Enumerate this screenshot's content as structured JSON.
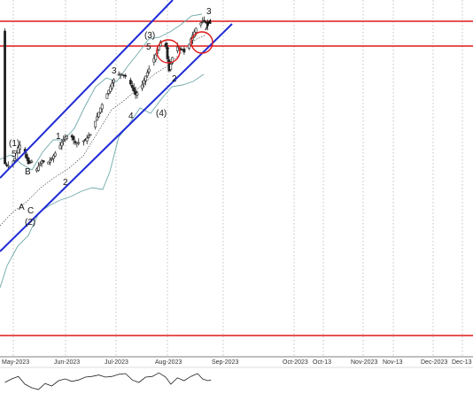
{
  "chart_data": {
    "type": "candlestick",
    "x_ticks": [
      "May-2023",
      "Jun-2023",
      "Jul-2023",
      "Aug-2023",
      "Sep-2023",
      "Oct-2023",
      "Oct-13",
      "Nov-2023",
      "Nov-13",
      "Dec-2023",
      "Dec-13"
    ],
    "wave_labels": [
      "(1)",
      "5",
      "B",
      "A",
      "C",
      "(2)",
      "1",
      "2",
      "3",
      "4",
      "(3)",
      "5",
      "(4)",
      "1",
      "2",
      "3"
    ],
    "grid": "vertical dotted",
    "colors": {
      "channel": "#1f2bd6",
      "horizontal_lines": "#e01919",
      "candles": "#222222",
      "bollinger_bands": "#6fa8a8",
      "oscillator": "#222222"
    },
    "price_path": [
      [
        "2023-04-26",
        0.35
      ],
      [
        "2023-04-29",
        0.34
      ],
      [
        "2023-05-02",
        0.37
      ],
      [
        "2023-05-04",
        0.41
      ],
      [
        "2023-05-06",
        0.43
      ],
      [
        "2023-05-08",
        0.39
      ],
      [
        "2023-05-10",
        0.35
      ],
      [
        "2023-05-12",
        0.36
      ],
      [
        "2023-05-14",
        0.32
      ],
      [
        "2023-05-16",
        0.34
      ],
      [
        "2023-05-18",
        0.36
      ],
      [
        "2023-05-21",
        0.35
      ],
      [
        "2023-05-24",
        0.37
      ],
      [
        "2023-05-28",
        0.41
      ],
      [
        "2023-06-01",
        0.45
      ],
      [
        "2023-06-04",
        0.46
      ],
      [
        "2023-06-07",
        0.43
      ],
      [
        "2023-06-10",
        0.43
      ],
      [
        "2023-06-13",
        0.44
      ],
      [
        "2023-06-16",
        0.46
      ],
      [
        "2023-06-19",
        0.51
      ],
      [
        "2023-06-22",
        0.56
      ],
      [
        "2023-06-25",
        0.6
      ],
      [
        "2023-06-28",
        0.64
      ],
      [
        "2023-07-01",
        0.68
      ],
      [
        "2023-07-04",
        0.69
      ],
      [
        "2023-07-07",
        0.68
      ],
      [
        "2023-07-10",
        0.65
      ],
      [
        "2023-07-13",
        0.61
      ],
      [
        "2023-07-16",
        0.63
      ],
      [
        "2023-07-19",
        0.68
      ],
      [
        "2023-07-22",
        0.72
      ],
      [
        "2023-07-25",
        0.76
      ],
      [
        "2023-07-28",
        0.81
      ],
      [
        "2023-07-31",
        0.79
      ],
      [
        "2023-08-02",
        0.7
      ],
      [
        "2023-08-04",
        0.75
      ],
      [
        "2023-08-07",
        0.79
      ],
      [
        "2023-08-10",
        0.78
      ],
      [
        "2023-08-12",
        0.76
      ],
      [
        "2023-08-15",
        0.82
      ],
      [
        "2023-08-18",
        0.86
      ],
      [
        "2023-08-21",
        0.88
      ],
      [
        "2023-08-23",
        0.89
      ],
      [
        "2023-08-25",
        0.87
      ],
      [
        "2023-08-27",
        0.85
      ]
    ],
    "oscillator_path": [
      [
        "2023-04-26",
        0.45
      ],
      [
        "2023-04-30",
        0.55
      ],
      [
        "2023-05-04",
        0.62
      ],
      [
        "2023-05-08",
        0.4
      ],
      [
        "2023-05-12",
        0.3
      ],
      [
        "2023-05-16",
        0.25
      ],
      [
        "2023-05-20",
        0.42
      ],
      [
        "2023-05-24",
        0.35
      ],
      [
        "2023-05-28",
        0.5
      ],
      [
        "2023-06-01",
        0.55
      ],
      [
        "2023-06-05",
        0.48
      ],
      [
        "2023-06-09",
        0.52
      ],
      [
        "2023-06-13",
        0.6
      ],
      [
        "2023-06-17",
        0.62
      ],
      [
        "2023-06-21",
        0.66
      ],
      [
        "2023-06-25",
        0.6
      ],
      [
        "2023-06-29",
        0.62
      ],
      [
        "2023-07-03",
        0.68
      ],
      [
        "2023-07-07",
        0.7
      ],
      [
        "2023-07-11",
        0.52
      ],
      [
        "2023-07-15",
        0.45
      ],
      [
        "2023-07-19",
        0.6
      ],
      [
        "2023-07-23",
        0.62
      ],
      [
        "2023-07-27",
        0.72
      ],
      [
        "2023-07-31",
        0.6
      ],
      [
        "2023-08-03",
        0.4
      ],
      [
        "2023-08-07",
        0.58
      ],
      [
        "2023-08-11",
        0.5
      ],
      [
        "2023-08-15",
        0.62
      ],
      [
        "2023-08-19",
        0.7
      ],
      [
        "2023-08-22",
        0.55
      ],
      [
        "2023-08-25",
        0.5
      ],
      [
        "2023-08-27",
        0.52
      ]
    ]
  }
}
